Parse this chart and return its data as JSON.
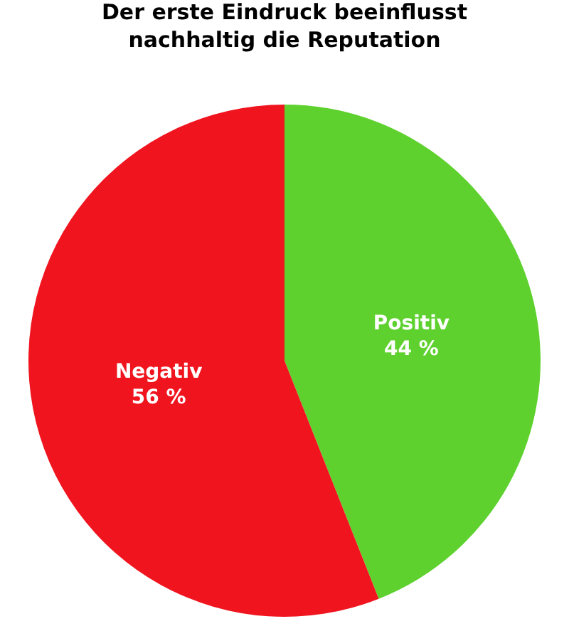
{
  "chart_data": {
    "type": "pie",
    "title": "Der erste Eindruck beeinflusst\nnachhaltig die Reputation",
    "categories": [
      "Positiv",
      "Negativ"
    ],
    "values": [
      44,
      56
    ],
    "value_labels": [
      "44 %",
      "56 %"
    ],
    "colors": [
      "#5ed12f",
      "#f0141e"
    ],
    "legend": false
  }
}
